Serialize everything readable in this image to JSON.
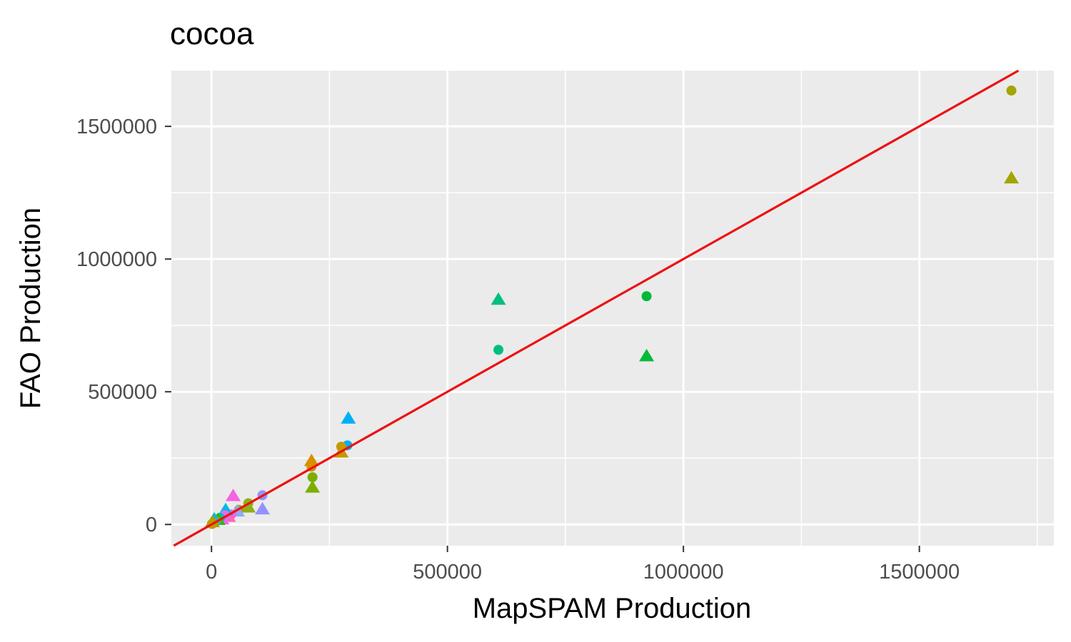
{
  "chart_data": {
    "type": "scatter",
    "title": "cocoa",
    "xlabel": "MapSPAM Production",
    "ylabel": "FAO Production",
    "xlim": [
      -85000,
      1785000
    ],
    "ylim": [
      -80000,
      1710000
    ],
    "x_ticks": [
      0,
      500000,
      1000000,
      1500000
    ],
    "x_tick_labels": [
      "0",
      "500000",
      "1000000",
      "1500000"
    ],
    "y_ticks": [
      0,
      500000,
      1000000,
      1500000
    ],
    "y_tick_labels": [
      "0",
      "500000",
      "1000000",
      "1500000"
    ],
    "grid": true,
    "reference_line": {
      "slope": 1,
      "intercept": 0,
      "color": "#ee1111"
    },
    "background": "#ebebeb",
    "points": [
      {
        "x": 1695000,
        "y": 1635000,
        "shape": "circle",
        "color": "#a3a500"
      },
      {
        "x": 1695000,
        "y": 1305000,
        "shape": "triangle",
        "color": "#a3a500"
      },
      {
        "x": 922000,
        "y": 860000,
        "shape": "circle",
        "color": "#00ba38"
      },
      {
        "x": 922000,
        "y": 635000,
        "shape": "triangle",
        "color": "#00ba38"
      },
      {
        "x": 608000,
        "y": 848000,
        "shape": "triangle",
        "color": "#00bf7d"
      },
      {
        "x": 608000,
        "y": 658000,
        "shape": "circle",
        "color": "#00bf7d"
      },
      {
        "x": 290000,
        "y": 400000,
        "shape": "triangle",
        "color": "#00b0f6"
      },
      {
        "x": 288000,
        "y": 298000,
        "shape": "circle",
        "color": "#00b0f6"
      },
      {
        "x": 275000,
        "y": 293000,
        "shape": "circle",
        "color": "#c49a00"
      },
      {
        "x": 275000,
        "y": 272000,
        "shape": "triangle",
        "color": "#c49a00"
      },
      {
        "x": 212000,
        "y": 240000,
        "shape": "triangle",
        "color": "#d89000"
      },
      {
        "x": 212000,
        "y": 218000,
        "shape": "circle",
        "color": "#d89000"
      },
      {
        "x": 214000,
        "y": 178000,
        "shape": "circle",
        "color": "#7cae00"
      },
      {
        "x": 214000,
        "y": 140000,
        "shape": "triangle",
        "color": "#7cae00"
      },
      {
        "x": 108000,
        "y": 110000,
        "shape": "circle",
        "color": "#9590ff"
      },
      {
        "x": 108000,
        "y": 58000,
        "shape": "triangle",
        "color": "#9590ff"
      },
      {
        "x": 78000,
        "y": 80000,
        "shape": "circle",
        "color": "#8fb01a"
      },
      {
        "x": 78000,
        "y": 65000,
        "shape": "triangle",
        "color": "#8fb01a"
      },
      {
        "x": 58000,
        "y": 55000,
        "shape": "circle",
        "color": "#b89a00"
      },
      {
        "x": 55000,
        "y": 50000,
        "shape": "triangle",
        "color": "#8babff"
      },
      {
        "x": 46000,
        "y": 108000,
        "shape": "triangle",
        "color": "#f564e3"
      },
      {
        "x": 42000,
        "y": 38000,
        "shape": "circle",
        "color": "#f564e3"
      },
      {
        "x": 36000,
        "y": 30000,
        "shape": "triangle",
        "color": "#ff62bc"
      },
      {
        "x": 30000,
        "y": 55000,
        "shape": "triangle",
        "color": "#00b8e7"
      },
      {
        "x": 28000,
        "y": 35000,
        "shape": "circle",
        "color": "#e76bf3"
      },
      {
        "x": 22000,
        "y": 20000,
        "shape": "triangle",
        "color": "#e76bf3"
      },
      {
        "x": 18000,
        "y": 25000,
        "shape": "circle",
        "color": "#00c0af"
      },
      {
        "x": 14000,
        "y": 18000,
        "shape": "triangle",
        "color": "#39b600"
      },
      {
        "x": 10000,
        "y": 12000,
        "shape": "circle",
        "color": "#a3a500"
      },
      {
        "x": 6000,
        "y": 20000,
        "shape": "triangle",
        "color": "#00bcd8"
      },
      {
        "x": 4000,
        "y": 5000,
        "shape": "circle",
        "color": "#d39200"
      },
      {
        "x": 2000,
        "y": 10000,
        "shape": "triangle",
        "color": "#93aa00"
      },
      {
        "x": 1000,
        "y": 2000,
        "shape": "circle",
        "color": "#c49a00"
      }
    ]
  }
}
